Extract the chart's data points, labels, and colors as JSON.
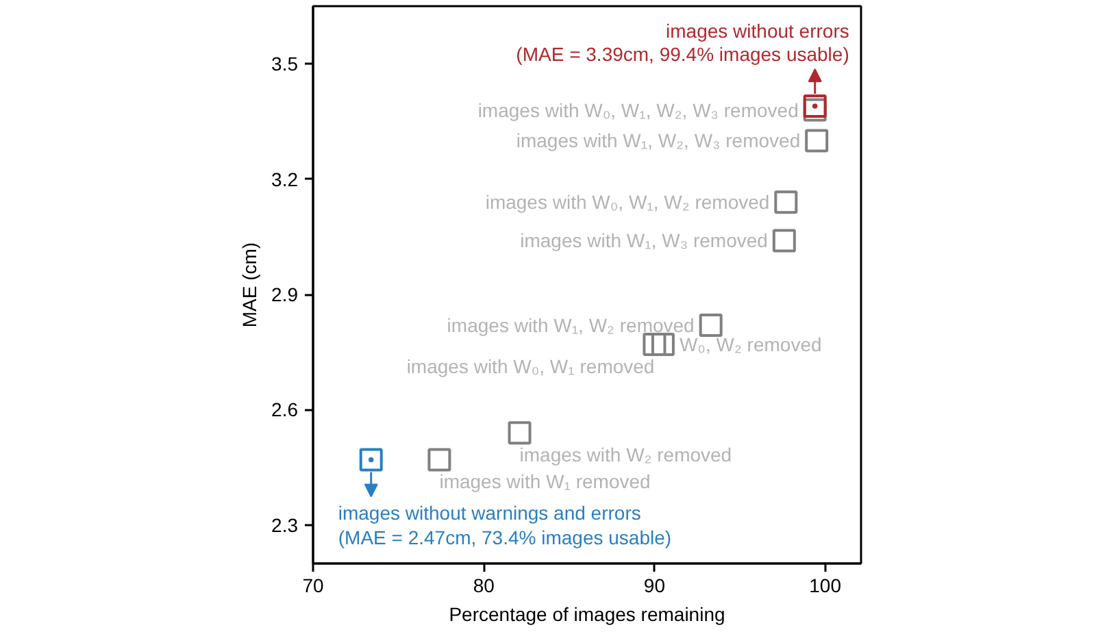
{
  "chart_data": {
    "type": "scatter",
    "xlabel": "Percentage of images remaining",
    "ylabel": "MAE (cm)",
    "xlim": [
      70,
      102.1
    ],
    "ylim": [
      2.2,
      3.65
    ],
    "xticks": [
      70,
      80,
      90,
      100
    ],
    "yticks": [
      2.3,
      2.6,
      2.9,
      3.2,
      3.5
    ],
    "grid": false,
    "marker": "square",
    "series": [
      {
        "color": "#808080",
        "x": [
          99.4,
          99.5,
          97.7,
          97.6,
          93.3,
          90.0,
          90.5,
          82.1,
          77.4
        ],
        "values": [
          3.38,
          3.3,
          3.14,
          3.04,
          2.82,
          2.77,
          2.77,
          2.54,
          2.47
        ],
        "value_labels": [
          "images with W₀, W₁, W₂, W₃ removed",
          "images with W₁, W₂, W₃ removed",
          "images with W₀, W₁, W₂ removed",
          "images with W₁, W₃ removed",
          "images with W₁, W₂ removed",
          "images with W₀, W₁ removed",
          "W₀, W₂ removed",
          "images with W₂ removed",
          "images with W₁ removed"
        ]
      },
      {
        "color": "#b2282d",
        "x": [
          99.4
        ],
        "values": [
          3.39
        ]
      },
      {
        "color": "#2a7fc1",
        "x": [
          73.4
        ],
        "values": [
          2.47
        ]
      }
    ],
    "annotations": [
      {
        "text": "images without errors\n(MAE = 3.39cm, 99.4% images usable)",
        "x": 99.4,
        "y": 3.39
      },
      {
        "text": "images without warnings and errors\n(MAE = 2.47cm, 73.4% images usable)",
        "x": 73.4,
        "y": 2.47
      }
    ]
  }
}
